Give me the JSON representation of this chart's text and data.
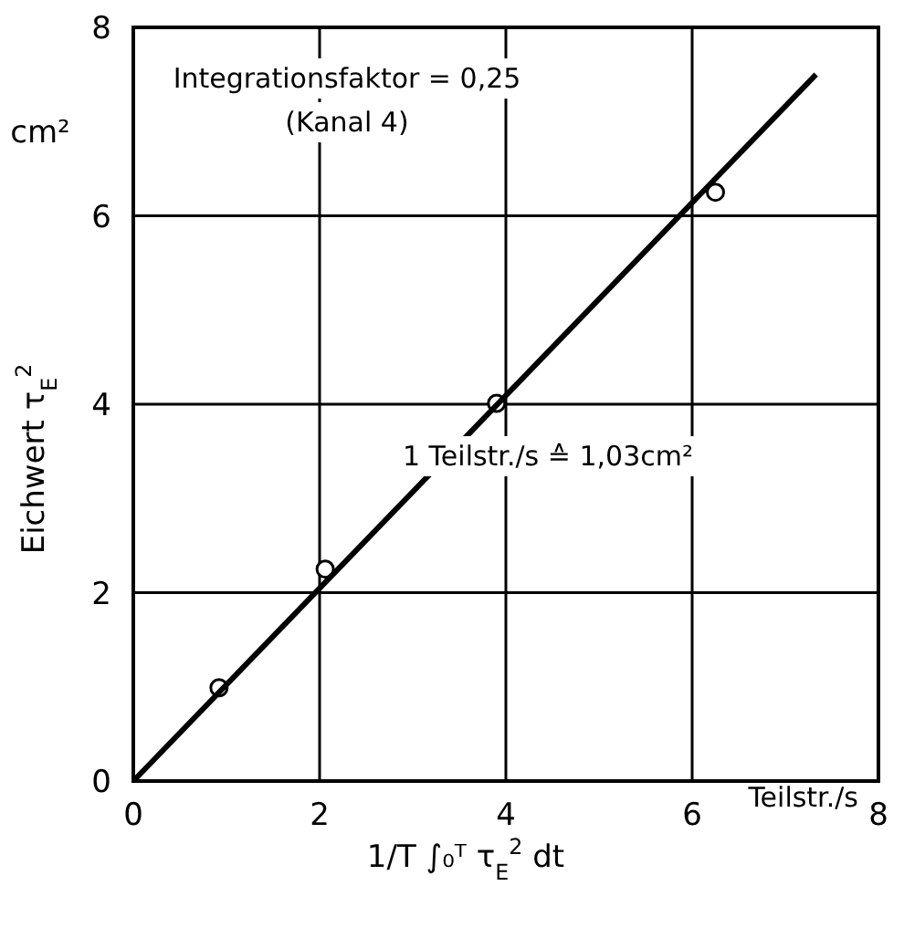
{
  "chart_data": {
    "type": "scatter",
    "ylabel": "Eichwert τ$_{E}$$^{2}$",
    "xlabel": "1/T ∫₀ᵀ τ$_{E}$$^{2}$ dt",
    "annotations": [
      "cm²",
      "Teilstr./s",
      "Integrationsfaktor = 0,25",
      "(Kanal 4)",
      "1 Teilstr./s ≙ 1,03cm²"
    ],
    "xlim": [
      0,
      8
    ],
    "ylim": [
      0,
      8
    ],
    "xticks": [
      0,
      2,
      4,
      6,
      8
    ],
    "yticks": [
      0,
      2,
      4,
      6,
      8
    ],
    "grid": true,
    "series": [
      {
        "marker": "circle",
        "color": "#000000",
        "x": [
          0.92,
          2.06,
          3.9,
          6.25
        ],
        "values": [
          0.99,
          2.25,
          4.01,
          6.25
        ]
      },
      {
        "type": "line",
        "color": "#000000",
        "x": [
          0,
          7.33
        ],
        "values": [
          0,
          7.5
        ]
      }
    ]
  }
}
